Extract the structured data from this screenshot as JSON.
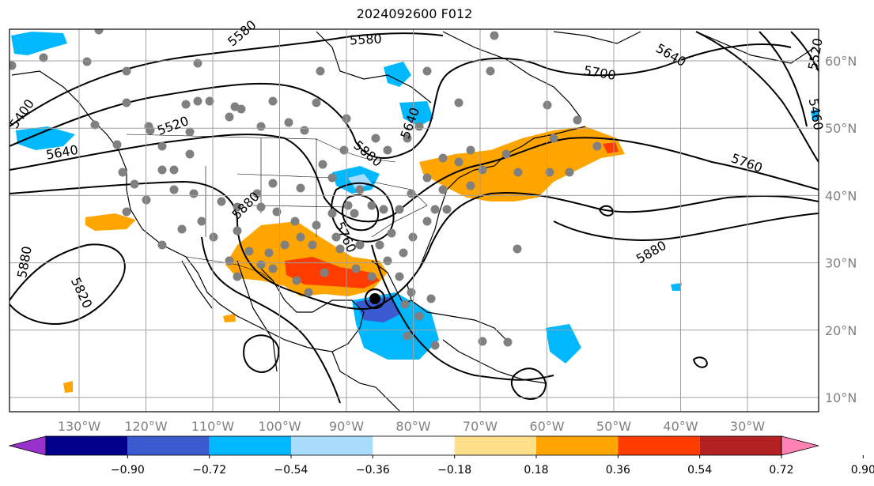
{
  "title": "2024092600 F012",
  "map": {
    "lon_range": [
      -135,
      -20
    ],
    "lat_range": [
      8,
      65
    ],
    "lon_ticks": [
      "130°W",
      "120°W",
      "110°W",
      "100°W",
      "90°W",
      "80°W",
      "70°W",
      "60°W",
      "50°W",
      "40°W",
      "30°W"
    ],
    "lat_ticks": [
      "10°N",
      "20°N",
      "30°N",
      "40°N",
      "50°N",
      "60°N"
    ],
    "contour_labels": [
      "5400",
      "5520",
      "5640",
      "5580",
      "5700",
      "5640",
      "5760",
      "5880",
      "5820",
      "5880",
      "5880",
      "5640",
      "5760",
      "5460",
      "5520",
      "5880",
      "5580"
    ],
    "colors": {
      "negative_strong": "#3a5bcf",
      "negative_mid": "#00b8ff",
      "negative_light": "#a8dcff",
      "positive_light": "#ffe08a",
      "positive_mid": "#ffa500",
      "positive_strong": "#ff3c00",
      "positive_dark": "#b22222"
    },
    "hurricane_marker": "hurricane-center-icon"
  },
  "colorbar": {
    "colors": [
      "#9932cc",
      "#00008b",
      "#3a5bcf",
      "#00b8ff",
      "#a8dcff",
      "#ffffff",
      "#ffe08a",
      "#ffa500",
      "#ff3c00",
      "#b22222",
      "#ff82b4"
    ],
    "tick_labels": [
      "−0.90",
      "−0.72",
      "−0.54",
      "−0.36",
      "−0.18",
      "0.18",
      "0.36",
      "0.54",
      "0.72",
      "0.90"
    ]
  }
}
